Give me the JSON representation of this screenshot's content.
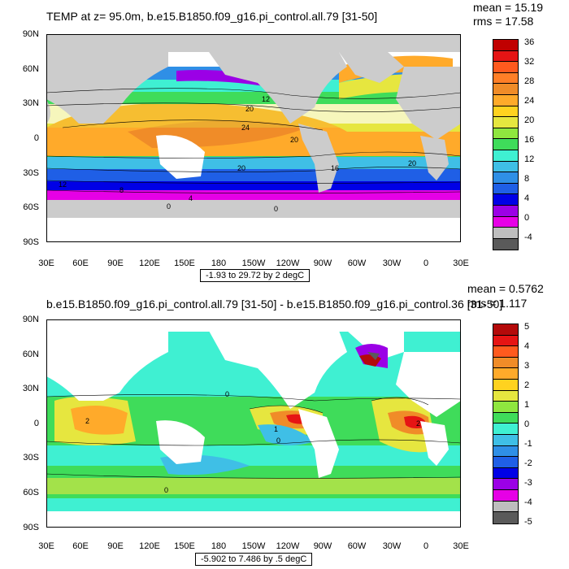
{
  "panel1": {
    "title": "TEMP at z=  95.0m, b.e15.B1850.f09_g16.pi_control.all.79 [31-50]",
    "mean": "mean = 15.19",
    "rms": "rms = 17.58",
    "range_label": "-1.93 to 29.72 by 2 degC",
    "colorbar_labels": [
      "36",
      "32",
      "28",
      "24",
      "20",
      "16",
      "12",
      "8",
      "4",
      "0",
      "-4"
    ],
    "contour_labels": [
      "20",
      "24",
      "20",
      "16",
      "20",
      "16",
      "12",
      "8",
      "4",
      "0",
      "0",
      "12",
      "8",
      "12",
      "16",
      "4",
      "20"
    ]
  },
  "panel2": {
    "title": "b.e15.B1850.f09_g16.pi_control.all.79 [31-50] - b.e15.B1850.f09_g16.pi_control.36 [31-50]",
    "mean": "mean = 0.5762",
    "rms": "rms = 1.117",
    "range_label": "-5.902 to 7.486 by .5 degC",
    "colorbar_labels": [
      "5",
      "4",
      "3",
      "2",
      "1",
      "0",
      "-1",
      "-2",
      "-3",
      "-4",
      "-5"
    ],
    "contour_labels": [
      "0",
      "2",
      "1",
      "0",
      "-1",
      "0",
      "0",
      "-1"
    ]
  },
  "axes": {
    "y_labels": [
      "90N",
      "60N",
      "30N",
      "0",
      "30S",
      "60S",
      "90S"
    ],
    "x_labels": [
      "30E",
      "60E",
      "90E",
      "120E",
      "150E",
      "180",
      "150W",
      "120W",
      "90W",
      "60W",
      "30W",
      "0",
      "30E"
    ]
  },
  "colors": {
    "temp_scale": [
      "#ffffff",
      "#5a5a5a",
      "#bebebe",
      "#e600e6",
      "#9b00e6",
      "#0000e6",
      "#1f5fe6",
      "#2f8fe6",
      "#3fbfe6",
      "#3ff0d2",
      "#3fdc5a",
      "#8fe63f",
      "#e6e63f",
      "#ffd21f",
      "#ffaa2a",
      "#f08c28",
      "#ff5a1e",
      "#e61414",
      "#b40a0a"
    ],
    "diff_scale": [
      "#5a5a5a",
      "#bebebe",
      "#e600e6",
      "#9b00e6",
      "#0000e6",
      "#1f5fe6",
      "#2f8fe6",
      "#3fbfe6",
      "#3ff0d2",
      "#3fdc5a",
      "#8fe63f",
      "#e6e63f",
      "#ffd21f",
      "#ffaa2a",
      "#f08c28",
      "#ff5a1e",
      "#e61414",
      "#b40a0a"
    ],
    "land": "#cccccc"
  }
}
